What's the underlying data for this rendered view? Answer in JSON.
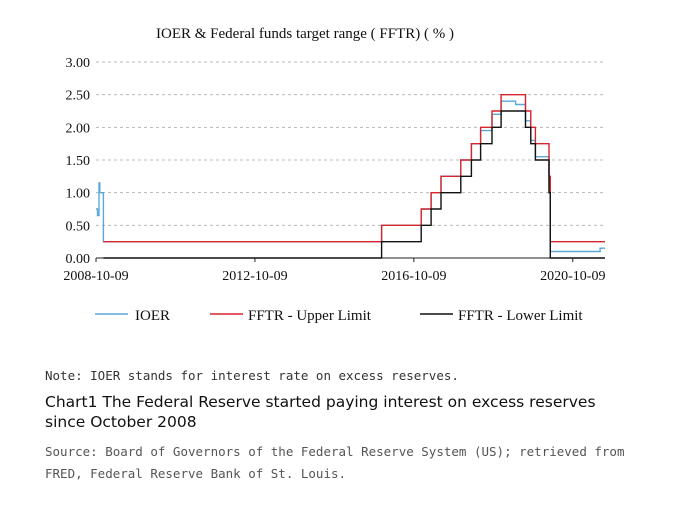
{
  "chart_data": {
    "type": "line",
    "title": "IOER & Federal funds target range ( FFTR) ( % )",
    "xlabel": "",
    "ylabel": "",
    "xlim": [
      "2008-10-09",
      "2021-08-01"
    ],
    "ylim": [
      0,
      3
    ],
    "x_ticks": [
      "2008-10-09",
      "2012-10-09",
      "2016-10-09",
      "2020-10-09"
    ],
    "y_ticks": [
      "0.00",
      "0.50",
      "1.00",
      "1.50",
      "2.00",
      "2.50",
      "3.00"
    ],
    "grid": "horizontal-dashed",
    "legend": "bottom",
    "series": [
      {
        "name": "IOER",
        "color": "#5aa7d8",
        "step": true,
        "points": [
          [
            "2008-10-09",
            0.75
          ],
          [
            "2008-10-23",
            0.65
          ],
          [
            "2008-11-06",
            1.15
          ],
          [
            "2008-11-13",
            1.0
          ],
          [
            "2008-12-16",
            0.25
          ],
          [
            "2015-12-17",
            0.5
          ],
          [
            "2016-12-15",
            0.75
          ],
          [
            "2017-03-16",
            1.0
          ],
          [
            "2017-06-15",
            1.25
          ],
          [
            "2017-12-14",
            1.5
          ],
          [
            "2018-03-22",
            1.75
          ],
          [
            "2018-06-14",
            1.95
          ],
          [
            "2018-09-27",
            2.2
          ],
          [
            "2018-12-20",
            2.4
          ],
          [
            "2019-05-02",
            2.35
          ],
          [
            "2019-08-01",
            2.1
          ],
          [
            "2019-09-19",
            1.8
          ],
          [
            "2019-10-31",
            1.55
          ],
          [
            "2020-03-04",
            1.1
          ],
          [
            "2020-03-16",
            0.1
          ],
          [
            "2021-06-17",
            0.15
          ],
          [
            "2021-08-01",
            0.15
          ]
        ]
      },
      {
        "name": "FFTR - Upper Limit",
        "color": "#d9242b",
        "step": true,
        "points": [
          [
            "2008-12-16",
            0.25
          ],
          [
            "2015-12-17",
            0.5
          ],
          [
            "2016-12-15",
            0.75
          ],
          [
            "2017-03-16",
            1.0
          ],
          [
            "2017-06-15",
            1.25
          ],
          [
            "2017-12-14",
            1.5
          ],
          [
            "2018-03-22",
            1.75
          ],
          [
            "2018-06-14",
            2.0
          ],
          [
            "2018-09-27",
            2.25
          ],
          [
            "2018-12-20",
            2.5
          ],
          [
            "2019-08-01",
            2.25
          ],
          [
            "2019-09-19",
            2.0
          ],
          [
            "2019-10-31",
            1.75
          ],
          [
            "2020-03-04",
            1.25
          ],
          [
            "2020-03-16",
            0.25
          ],
          [
            "2021-08-01",
            0.25
          ]
        ]
      },
      {
        "name": "FFTR - Lower Limit",
        "color": "#111111",
        "step": true,
        "points": [
          [
            "2008-12-16",
            0.0
          ],
          [
            "2015-12-17",
            0.25
          ],
          [
            "2016-12-15",
            0.5
          ],
          [
            "2017-03-16",
            0.75
          ],
          [
            "2017-06-15",
            1.0
          ],
          [
            "2017-12-14",
            1.25
          ],
          [
            "2018-03-22",
            1.5
          ],
          [
            "2018-06-14",
            1.75
          ],
          [
            "2018-09-27",
            2.0
          ],
          [
            "2018-12-20",
            2.25
          ],
          [
            "2019-08-01",
            2.0
          ],
          [
            "2019-09-19",
            1.75
          ],
          [
            "2019-10-31",
            1.5
          ],
          [
            "2020-03-04",
            1.0
          ],
          [
            "2020-03-16",
            0.0
          ],
          [
            "2021-08-01",
            0.0
          ]
        ]
      }
    ]
  },
  "note": "Note: IOER stands for interest rate on excess reserves.",
  "caption": "Chart1  The Federal Reserve started paying interest on excess reserves since October 2008",
  "source": "Source: Board of Governors of the Federal Reserve System (US); retrieved from FRED, Federal Reserve Bank of St. Louis."
}
